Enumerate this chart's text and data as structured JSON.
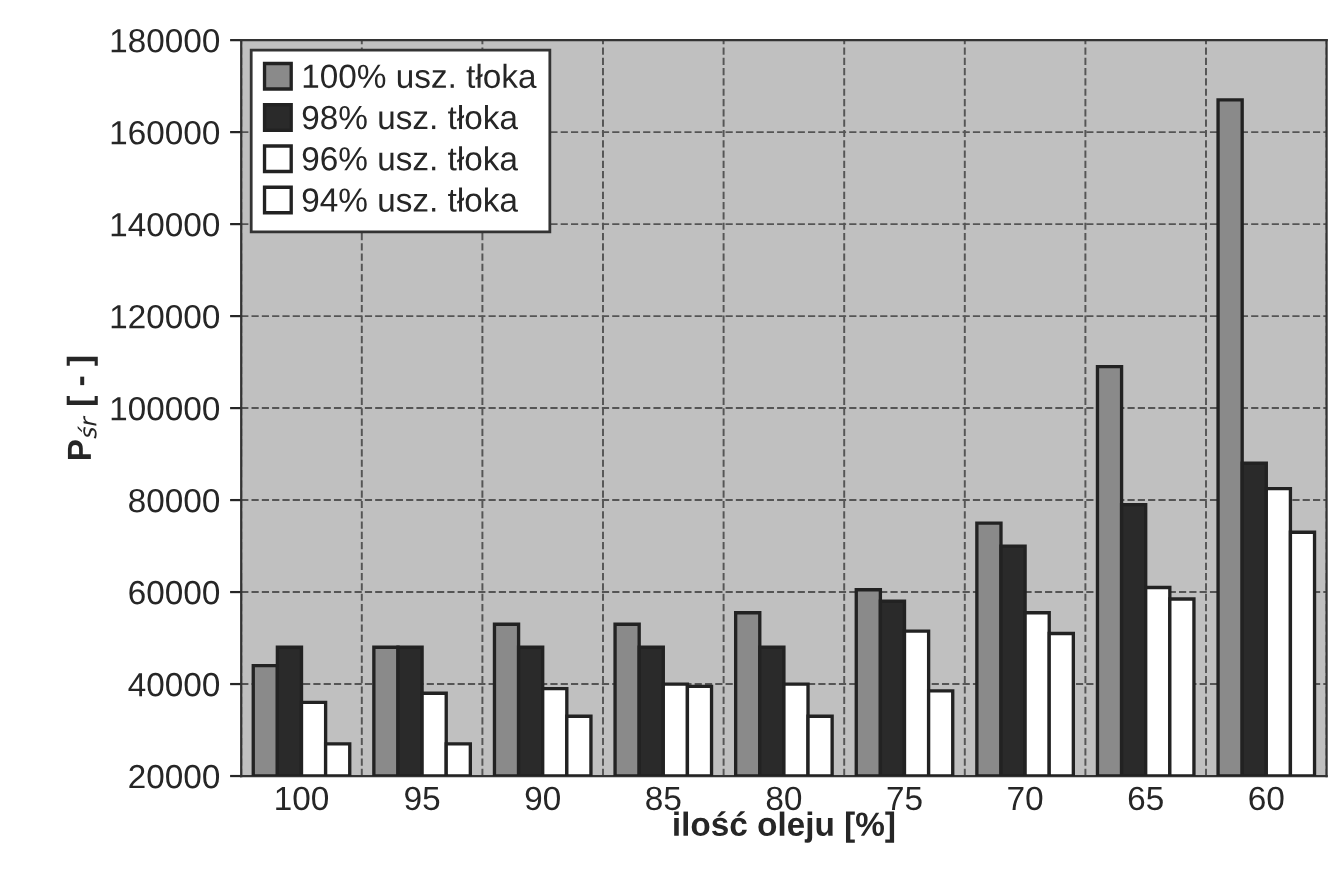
{
  "chart_data": {
    "type": "bar",
    "xlabel": "ilość oleju [%]",
    "ylabel": "P$_{śr}$ [ - ]",
    "categories": [
      "100",
      "95",
      "90",
      "85",
      "80",
      "75",
      "70",
      "65",
      "60"
    ],
    "series": [
      {
        "name": "100% usz. tłoka",
        "color": "#8a8a8a",
        "values": [
          44000,
          48000,
          53000,
          53000,
          55500,
          60500,
          75000,
          109000,
          167000
        ]
      },
      {
        "name": "98% usz. tłoka",
        "color": "#2a2a2a",
        "values": [
          48000,
          48000,
          48000,
          48000,
          48000,
          58000,
          70000,
          79000,
          88000
        ]
      },
      {
        "name": "96% usz. tłoka",
        "color": "#ffffff",
        "values": [
          36000,
          38000,
          39000,
          40000,
          40000,
          51500,
          55500,
          61000,
          82500
        ]
      },
      {
        "name": "94% usz. tłoka",
        "color": "#ffffff",
        "values": [
          27000,
          27000,
          33000,
          39500,
          33000,
          38500,
          51000,
          58500,
          73000
        ]
      }
    ],
    "ylim": [
      20000,
      180000
    ],
    "yticks": [
      20000,
      40000,
      60000,
      80000,
      100000,
      120000,
      140000,
      160000,
      180000
    ],
    "grid": true,
    "legend": "top left"
  }
}
